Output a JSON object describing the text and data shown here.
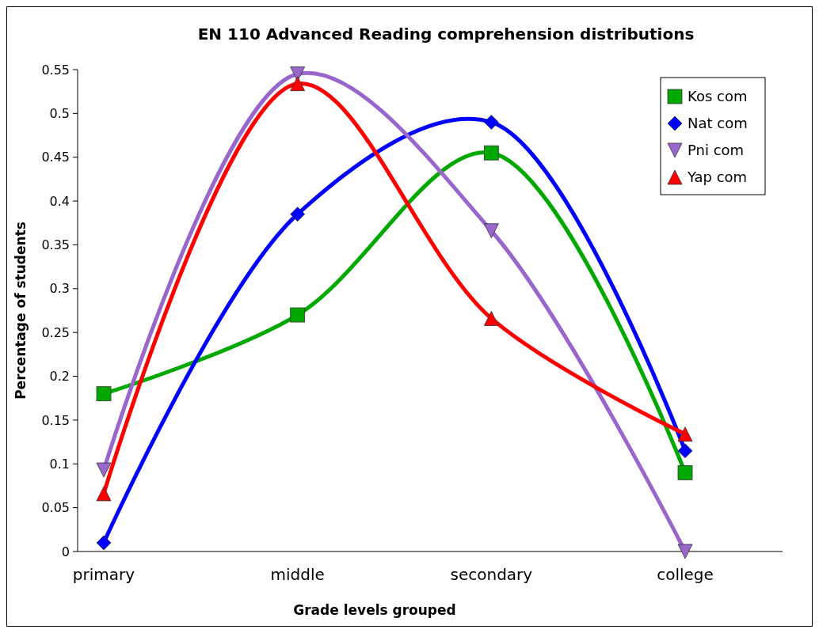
{
  "chart_data": {
    "type": "line",
    "title": "EN 110 Advanced Reading comprehension distributions",
    "xlabel": "Grade levels grouped",
    "ylabel": "Percentage of students",
    "categories": [
      "primary",
      "middle",
      "secondary",
      "college"
    ],
    "ylim": [
      0,
      0.55
    ],
    "yticks": [
      0,
      0.05,
      0.1,
      0.15,
      0.2,
      0.25,
      0.3,
      0.35,
      0.4,
      0.45,
      0.5,
      0.55
    ],
    "legend": "top right",
    "grid": false,
    "series": [
      {
        "name": "Kos com",
        "color": "#00a800",
        "marker": "square",
        "values": [
          0.18,
          0.27,
          0.455,
          0.09
        ]
      },
      {
        "name": "Nat com",
        "color": "#0000ff",
        "marker": "diamond",
        "values": [
          0.01,
          0.385,
          0.49,
          0.115
        ]
      },
      {
        "name": "Pni com",
        "color": "#9966cc",
        "marker": "triangle-down",
        "values": [
          0.093,
          0.545,
          0.366,
          0
        ]
      },
      {
        "name": "Yap com",
        "color": "#ff0000",
        "marker": "triangle",
        "values": [
          0.066,
          0.534,
          0.266,
          0.134
        ]
      }
    ]
  }
}
